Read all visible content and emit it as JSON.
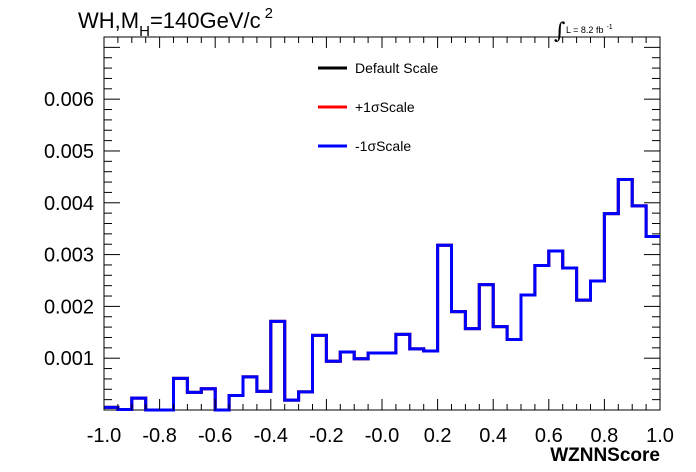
{
  "chart_data": {
    "type": "line",
    "title_main": "WH,M",
    "title_sub": "H",
    "title_rest": "=140GeV/c",
    "title_sup": "2",
    "lumi_label": "L = 8.2 fb",
    "lumi_sup": "-1",
    "xlabel": "WZNNScore",
    "xlim": [
      -1.0,
      1.0
    ],
    "ylim": [
      0,
      0.0072
    ],
    "x_ticks": [
      -1.0,
      -0.8,
      -0.6,
      -0.4,
      -0.2,
      0.0,
      0.2,
      0.4,
      0.6,
      0.8,
      1.0
    ],
    "x_tick_labels": [
      "-1.0",
      "-0.8",
      "-0.6",
      "-0.4",
      "-0.2",
      "-0.0",
      "0.2",
      "0.4",
      "0.6",
      "0.8",
      "1.0"
    ],
    "y_ticks": [
      0.001,
      0.002,
      0.003,
      0.004,
      0.005,
      0.006
    ],
    "y_tick_labels": [
      "0.001",
      "0.002",
      "0.003",
      "0.004",
      "0.005",
      "0.006"
    ],
    "bin_edges": [
      -1.0,
      -0.95,
      -0.9,
      -0.85,
      -0.8,
      -0.75,
      -0.7,
      -0.65,
      -0.6,
      -0.55,
      -0.5,
      -0.45,
      -0.4,
      -0.35,
      -0.3,
      -0.25,
      -0.2,
      -0.15,
      -0.1,
      -0.05,
      0.0,
      0.05,
      0.1,
      0.15,
      0.2,
      0.25,
      0.3,
      0.35,
      0.4,
      0.45,
      0.5,
      0.55,
      0.6,
      0.65,
      0.7,
      0.75,
      0.8,
      0.85,
      0.9,
      0.95,
      1.0
    ],
    "series": [
      {
        "name": "Default Scale",
        "color": "#000000",
        "values": [
          5e-05,
          1e-05,
          0.00023,
          0.0,
          0.0,
          0.00061,
          0.00034,
          0.00041,
          0.0,
          0.00028,
          0.00064,
          0.00036,
          0.00171,
          0.00019,
          0.00035,
          0.00144,
          0.00094,
          0.00112,
          0.00099,
          0.0011,
          0.0011,
          0.00146,
          0.00118,
          0.00114,
          0.00318,
          0.0019,
          0.00157,
          0.00242,
          0.00161,
          0.00136,
          0.00222,
          0.00279,
          0.00307,
          0.00274,
          0.00212,
          0.00249,
          0.00379,
          0.00445,
          0.00394,
          0.00335
        ]
      },
      {
        "name": "+1σScale",
        "color": "#ff0000",
        "values": [
          5e-05,
          1e-05,
          0.00023,
          0.0,
          0.0,
          0.00061,
          0.00034,
          0.00041,
          0.0,
          0.00028,
          0.00064,
          0.00036,
          0.00171,
          0.00019,
          0.00035,
          0.00144,
          0.00094,
          0.00112,
          0.00099,
          0.0011,
          0.0011,
          0.00146,
          0.00118,
          0.00114,
          0.00318,
          0.0019,
          0.00157,
          0.00242,
          0.00161,
          0.00136,
          0.00222,
          0.00279,
          0.00307,
          0.00274,
          0.00212,
          0.00249,
          0.00379,
          0.00445,
          0.00394,
          0.00335
        ]
      },
      {
        "name": "-1σScale",
        "color": "#0000ff",
        "values": [
          5e-05,
          1e-05,
          0.00023,
          0.0,
          0.0,
          0.00061,
          0.00034,
          0.00041,
          0.0,
          0.00028,
          0.00064,
          0.00036,
          0.00171,
          0.00019,
          0.00035,
          0.00144,
          0.00094,
          0.00112,
          0.00099,
          0.0011,
          0.0011,
          0.00146,
          0.00118,
          0.00114,
          0.00318,
          0.0019,
          0.00157,
          0.00242,
          0.00161,
          0.00136,
          0.00222,
          0.00279,
          0.00307,
          0.00274,
          0.00212,
          0.00249,
          0.00379,
          0.00445,
          0.00394,
          0.00335
        ]
      }
    ],
    "legend_position": "top-center",
    "grid": false
  }
}
